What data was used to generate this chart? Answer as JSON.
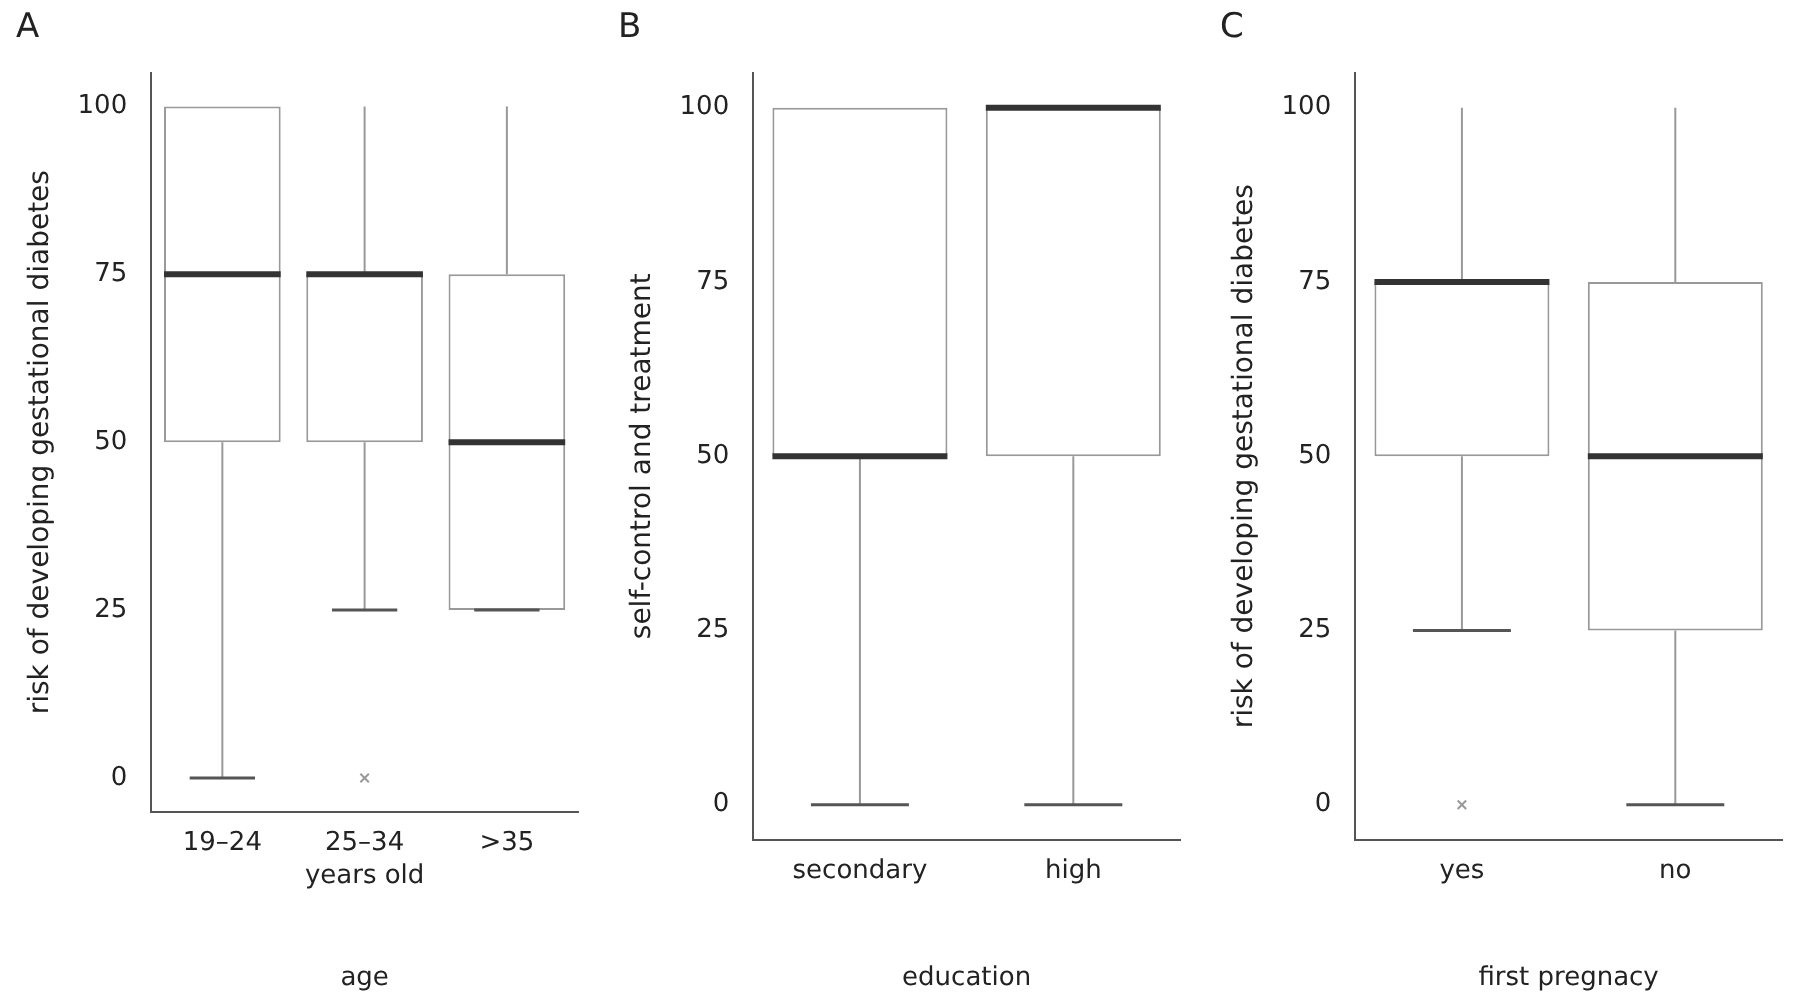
{
  "chart_data": [
    {
      "type": "box",
      "title": "A",
      "xlabel": "age",
      "ylabel": "risk of developing gestational diabetes",
      "annotations": [
        "years old"
      ],
      "categories": [
        "19–24",
        "25–34",
        ">35"
      ],
      "color": "#999999",
      "marker": "cross",
      "grid": false,
      "legend": false,
      "ylim": [
        -5,
        105
      ],
      "yticks": [
        0,
        25,
        50,
        75,
        100
      ],
      "boxes": [
        {
          "low": 0,
          "q1": 50,
          "median": 75,
          "q3": 100,
          "high": 100
        },
        {
          "low": 25,
          "q1": 50,
          "median": 75,
          "q3": 75,
          "high": 100,
          "outliers": [
            0
          ]
        },
        {
          "low": 25,
          "q1": 25,
          "median": 50,
          "q3": 75,
          "high": 100
        }
      ]
    },
    {
      "type": "box",
      "title": "B",
      "xlabel": "education",
      "ylabel": "self-control and treatment",
      "categories": [
        "secondary",
        "high"
      ],
      "color": "#999999",
      "grid": false,
      "legend": false,
      "ylim": [
        -5,
        105
      ],
      "yticks": [
        0,
        25,
        50,
        75,
        100
      ],
      "boxes": [
        {
          "low": 0,
          "q1": 50,
          "median": 50,
          "q3": 100,
          "high": 100
        },
        {
          "low": 0,
          "q1": 50,
          "median": 100,
          "q3": 100,
          "high": 100
        }
      ]
    },
    {
      "type": "box",
      "title": "C",
      "xlabel": "first pregnacy",
      "ylabel": "risk of developing gestational diabetes",
      "categories": [
        "yes",
        "no"
      ],
      "color": "#999999",
      "marker": "cross",
      "grid": false,
      "legend": false,
      "ylim": [
        -5,
        105
      ],
      "yticks": [
        0,
        25,
        50,
        75,
        100
      ],
      "boxes": [
        {
          "low": 25,
          "q1": 50,
          "median": 75,
          "q3": 75,
          "high": 100,
          "outliers": [
            0
          ]
        },
        {
          "low": 0,
          "q1": 25,
          "median": 50,
          "q3": 75,
          "high": 100
        }
      ]
    }
  ]
}
